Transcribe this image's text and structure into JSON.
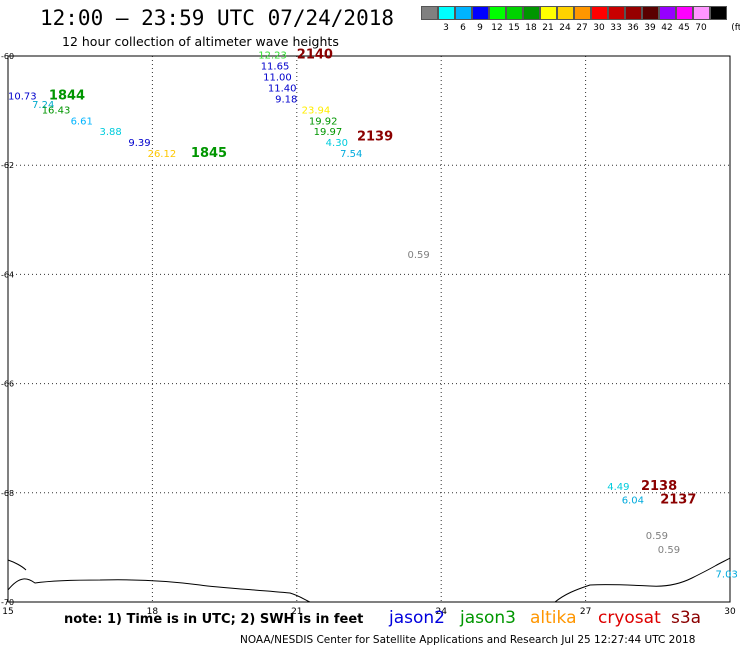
{
  "header": {
    "title": "12:00 – 23:59 UTC 07/24/2018",
    "subtitle": "12 hour collection of altimeter wave heights"
  },
  "color_scale": {
    "unit": "(ft)",
    "steps": [
      {
        "label": "",
        "color": "#808080"
      },
      {
        "label": "3",
        "color": "#00ffff"
      },
      {
        "label": "6",
        "color": "#00b4ff"
      },
      {
        "label": "9",
        "color": "#0000ff"
      },
      {
        "label": "12",
        "color": "#00ff00"
      },
      {
        "label": "15",
        "color": "#00d200"
      },
      {
        "label": "18",
        "color": "#009600"
      },
      {
        "label": "21",
        "color": "#ffff00"
      },
      {
        "label": "24",
        "color": "#ffd200"
      },
      {
        "label": "27",
        "color": "#ff9600"
      },
      {
        "label": "30",
        "color": "#ff0000"
      },
      {
        "label": "33",
        "color": "#c80000"
      },
      {
        "label": "36",
        "color": "#960000"
      },
      {
        "label": "39",
        "color": "#5a0000"
      },
      {
        "label": "42",
        "color": "#9600ff"
      },
      {
        "label": "45",
        "color": "#ff00ff"
      },
      {
        "label": "70",
        "color": "#ff96ff"
      },
      {
        "label": "",
        "color": "#000000"
      }
    ]
  },
  "map": {
    "lon_range": [
      15,
      30
    ],
    "lat_range": [
      -60,
      -70
    ],
    "lon_ticks": [
      "15",
      "18",
      "21",
      "24",
      "27",
      "30"
    ],
    "lat_ticks": [
      "-60",
      "-62",
      "-64",
      "-66",
      "-68",
      "-70"
    ],
    "gridlines": true
  },
  "measurements": [
    {
      "text": "10.73",
      "color": "#0000cc",
      "lon": 15.0,
      "lat": -60.8
    },
    {
      "text": "7.24",
      "color": "#00aacc",
      "lon": 15.5,
      "lat": -60.95
    },
    {
      "text": "16.43",
      "color": "#009600",
      "lon": 15.7,
      "lat": -61.05
    },
    {
      "text": "6.61",
      "color": "#00b4ff",
      "lon": 16.3,
      "lat": -61.25
    },
    {
      "text": "3.88",
      "color": "#00ccdd",
      "lon": 16.9,
      "lat": -61.45
    },
    {
      "text": "9.39",
      "color": "#0000cc",
      "lon": 17.5,
      "lat": -61.65
    },
    {
      "text": "26.12",
      "color": "#ffc800",
      "lon": 17.9,
      "lat": -61.85
    },
    {
      "text": "12.23",
      "color": "#33dd33",
      "lon": 20.2,
      "lat": -60.05
    },
    {
      "text": "11.65",
      "color": "#0000cc",
      "lon": 20.25,
      "lat": -60.25
    },
    {
      "text": "11.00",
      "color": "#0000cc",
      "lon": 20.3,
      "lat": -60.45
    },
    {
      "text": "11.40",
      "color": "#0000cc",
      "lon": 20.4,
      "lat": -60.65
    },
    {
      "text": "9.18",
      "color": "#0000cc",
      "lon": 20.55,
      "lat": -60.85
    },
    {
      "text": "23.94",
      "color": "#ffee00",
      "lon": 21.1,
      "lat": -61.05
    },
    {
      "text": "19.92",
      "color": "#009600",
      "lon": 21.25,
      "lat": -61.25
    },
    {
      "text": "19.97",
      "color": "#009600",
      "lon": 21.35,
      "lat": -61.45
    },
    {
      "text": "4.30",
      "color": "#00ccdd",
      "lon": 21.6,
      "lat": -61.65
    },
    {
      "text": "7.54",
      "color": "#00aadd",
      "lon": 21.9,
      "lat": -61.85
    },
    {
      "text": "0.59",
      "color": "#808080",
      "lon": 23.3,
      "lat": -63.7
    },
    {
      "text": "4.49",
      "color": "#00ccdd",
      "lon": 27.45,
      "lat": -67.95
    },
    {
      "text": "6.04",
      "color": "#00aadd",
      "lon": 27.75,
      "lat": -68.2
    },
    {
      "text": "0.59",
      "color": "#808080",
      "lon": 28.25,
      "lat": -68.85
    },
    {
      "text": "0.59",
      "color": "#808080",
      "lon": 28.5,
      "lat": -69.1
    },
    {
      "text": "7.03",
      "color": "#00aadd",
      "lon": 29.7,
      "lat": -69.55
    }
  ],
  "passes": [
    {
      "text": "1844",
      "color": "#009600",
      "lon": 15.85,
      "lat": -60.8
    },
    {
      "text": "1845",
      "color": "#009600",
      "lon": 18.8,
      "lat": -61.85
    },
    {
      "text": "2140",
      "color": "#8b0000",
      "lon": 21.0,
      "lat": -60.05
    },
    {
      "text": "2139",
      "color": "#8b0000",
      "lon": 22.25,
      "lat": -61.55
    },
    {
      "text": "2138",
      "color": "#8b0000",
      "lon": 28.15,
      "lat": -67.95
    },
    {
      "text": "2137",
      "color": "#8b0000",
      "lon": 28.55,
      "lat": -68.2
    }
  ],
  "note": "note: 1) Time is in UTC; 2) SWH is in feet",
  "legend": [
    {
      "name": "jason2",
      "color": "#0000dd"
    },
    {
      "name": "jason3",
      "color": "#009600"
    },
    {
      "name": "altika",
      "color": "#ff9600"
    },
    {
      "name": "cryosat",
      "color": "#dd0000"
    },
    {
      "name": "s3a",
      "color": "#8b0000"
    }
  ],
  "footer": "NOAA/NESDIS Center for Satellite Applications and Research   Jul 25 12:27:44 UTC 2018"
}
